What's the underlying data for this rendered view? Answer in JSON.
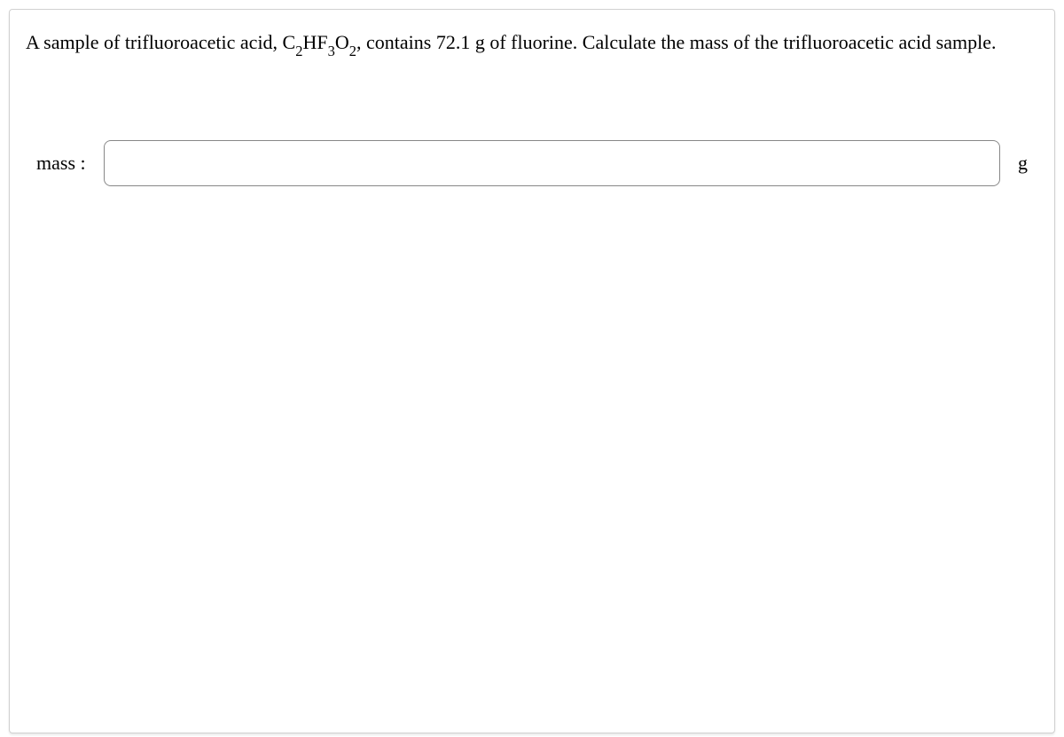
{
  "question": {
    "text_pre": "A sample of trifluoroacetic acid, C",
    "formula_sub1": "2",
    "formula_mid1": "HF",
    "formula_sub2": "3",
    "formula_mid2": "O",
    "formula_sub3": "2",
    "text_post": ", contains 72.1 g of fluorine. Calculate the mass of the trifluoroacetic acid sample."
  },
  "answer": {
    "label": "mass :",
    "input_value": "",
    "unit": "g"
  },
  "style": {
    "background_color": "#ffffff",
    "border_color": "#d0d0d0",
    "input_border_color": "#888888",
    "text_color": "#000000",
    "font_family": "Times New Roman",
    "question_fontsize": 22,
    "label_fontsize": 22,
    "container_width": 1180,
    "container_height": 817
  }
}
